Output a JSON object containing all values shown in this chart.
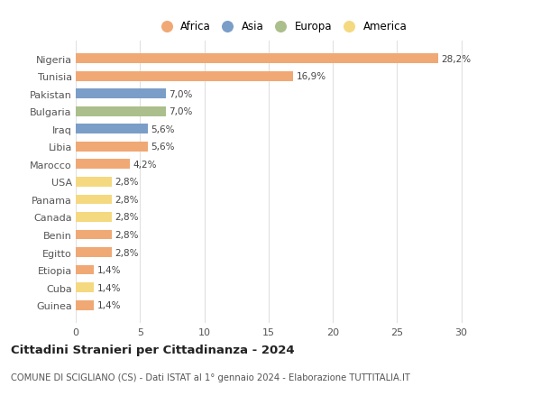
{
  "countries": [
    "Guinea",
    "Cuba",
    "Etiopia",
    "Egitto",
    "Benin",
    "Canada",
    "Panama",
    "USA",
    "Marocco",
    "Libia",
    "Iraq",
    "Bulgaria",
    "Pakistan",
    "Tunisia",
    "Nigeria"
  ],
  "values": [
    1.4,
    1.4,
    1.4,
    2.8,
    2.8,
    2.8,
    2.8,
    2.8,
    4.2,
    5.6,
    5.6,
    7.0,
    7.0,
    16.9,
    28.2
  ],
  "labels": [
    "1,4%",
    "1,4%",
    "1,4%",
    "2,8%",
    "2,8%",
    "2,8%",
    "2,8%",
    "2,8%",
    "4,2%",
    "5,6%",
    "5,6%",
    "7,0%",
    "7,0%",
    "16,9%",
    "28,2%"
  ],
  "continents": [
    "Africa",
    "America",
    "Africa",
    "Africa",
    "Africa",
    "America",
    "America",
    "America",
    "Africa",
    "Africa",
    "Asia",
    "Europa",
    "Asia",
    "Africa",
    "Africa"
  ],
  "continent_colors": {
    "Africa": "#F0A875",
    "Asia": "#7A9EC8",
    "Europa": "#AABF8C",
    "America": "#F5D980"
  },
  "legend_order": [
    "Africa",
    "Asia",
    "Europa",
    "America"
  ],
  "title": "Cittadini Stranieri per Cittadinanza - 2024",
  "subtitle": "COMUNE DI SCIGLIANO (CS) - Dati ISTAT al 1° gennaio 2024 - Elaborazione TUTTITALIA.IT",
  "xlim": [
    0,
    32
  ],
  "xticks": [
    0,
    5,
    10,
    15,
    20,
    25,
    30
  ],
  "bar_height": 0.55,
  "background_color": "#ffffff",
  "grid_color": "#e0e0e0"
}
